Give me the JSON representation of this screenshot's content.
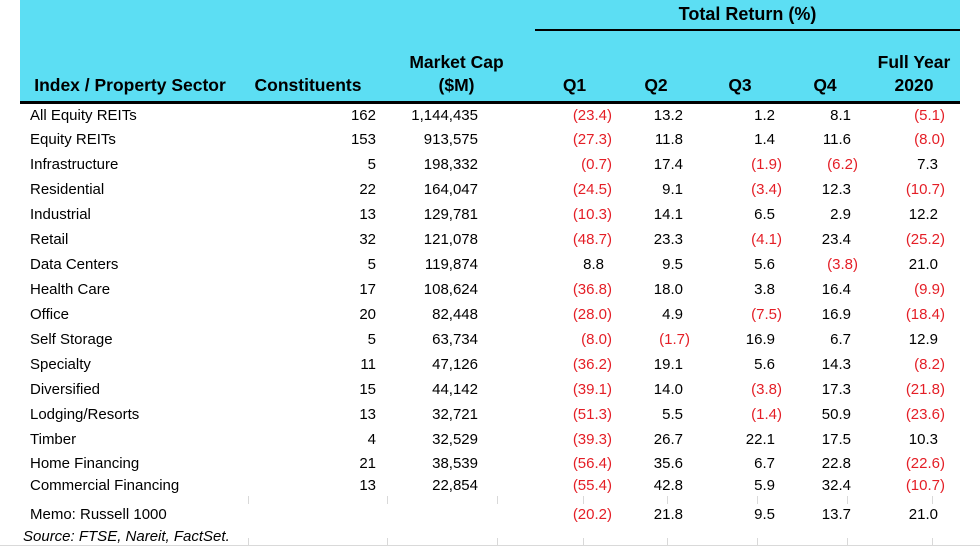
{
  "title": {
    "total_return": "Total Return (%)"
  },
  "columns": {
    "sector": "Index / Property Sector",
    "constituents": "Constituents",
    "market_cap": {
      "line1": "Market Cap",
      "line2": "($M)"
    },
    "q1": "Q1",
    "q2": "Q2",
    "q3": "Q3",
    "q4": "Q4",
    "full_year": {
      "line1": "Full Year",
      "line2": "2020"
    }
  },
  "rows": [
    {
      "sector": "All Equity REITs",
      "constituents": "162",
      "market_cap": "1,144,435",
      "q1": "(23.4)",
      "q2": "13.2",
      "q3": "1.2",
      "q4": "8.1",
      "full_year": "(5.1)"
    },
    {
      "sector": "Equity REITs",
      "constituents": "153",
      "market_cap": "913,575",
      "q1": "(27.3)",
      "q2": "11.8",
      "q3": "1.4",
      "q4": "11.6",
      "full_year": "(8.0)"
    },
    {
      "sector": "Infrastructure",
      "constituents": "5",
      "market_cap": "198,332",
      "q1": "(0.7)",
      "q2": "17.4",
      "q3": "(1.9)",
      "q4": "(6.2)",
      "full_year": "7.3"
    },
    {
      "sector": "Residential",
      "constituents": "22",
      "market_cap": "164,047",
      "q1": "(24.5)",
      "q2": "9.1",
      "q3": "(3.4)",
      "q4": "12.3",
      "full_year": "(10.7)"
    },
    {
      "sector": "Industrial",
      "constituents": "13",
      "market_cap": "129,781",
      "q1": "(10.3)",
      "q2": "14.1",
      "q3": "6.5",
      "q4": "2.9",
      "full_year": "12.2"
    },
    {
      "sector": "Retail",
      "constituents": "32",
      "market_cap": "121,078",
      "q1": "(48.7)",
      "q2": "23.3",
      "q3": "(4.1)",
      "q4": "23.4",
      "full_year": "(25.2)"
    },
    {
      "sector": "Data Centers",
      "constituents": "5",
      "market_cap": "119,874",
      "q1": "8.8",
      "q2": "9.5",
      "q3": "5.6",
      "q4": "(3.8)",
      "full_year": "21.0"
    },
    {
      "sector": "Health Care",
      "constituents": "17",
      "market_cap": "108,624",
      "q1": "(36.8)",
      "q2": "18.0",
      "q3": "3.8",
      "q4": "16.4",
      "full_year": "(9.9)"
    },
    {
      "sector": "Office",
      "constituents": "20",
      "market_cap": "82,448",
      "q1": "(28.0)",
      "q2": "4.9",
      "q3": "(7.5)",
      "q4": "16.9",
      "full_year": "(18.4)"
    },
    {
      "sector": "Self Storage",
      "constituents": "5",
      "market_cap": "63,734",
      "q1": "(8.0)",
      "q2": "(1.7)",
      "q3": "16.9",
      "q4": "6.7",
      "full_year": "12.9"
    },
    {
      "sector": "Specialty",
      "constituents": "11",
      "market_cap": "47,126",
      "q1": "(36.2)",
      "q2": "19.1",
      "q3": "5.6",
      "q4": "14.3",
      "full_year": "(8.2)"
    },
    {
      "sector": "Diversified",
      "constituents": "15",
      "market_cap": "44,142",
      "q1": "(39.1)",
      "q2": "14.0",
      "q3": "(3.8)",
      "q4": "17.3",
      "full_year": "(21.8)"
    },
    {
      "sector": "Lodging/Resorts",
      "constituents": "13",
      "market_cap": "32,721",
      "q1": "(51.3)",
      "q2": "5.5",
      "q3": "(1.4)",
      "q4": "50.9",
      "full_year": "(23.6)"
    },
    {
      "sector": "Timber",
      "constituents": "4",
      "market_cap": "32,529",
      "q1": "(39.3)",
      "q2": "26.7",
      "q3": "22.1",
      "q4": "17.5",
      "full_year": "10.3"
    },
    {
      "sector": "Home Financing",
      "constituents": "21",
      "market_cap": "38,539",
      "q1": "(56.4)",
      "q2": "35.6",
      "q3": "6.7",
      "q4": "22.8",
      "full_year": "(22.6)"
    },
    {
      "sector": "Commercial Financing",
      "constituents": "13",
      "market_cap": "22,854",
      "q1": "(55.4)",
      "q2": "42.8",
      "q3": "5.9",
      "q4": "32.4",
      "full_year": "(10.7)"
    }
  ],
  "memo_row": {
    "sector": "Memo: Russell 1000",
    "constituents": "",
    "market_cap": "",
    "q1": "(20.2)",
    "q2": "21.8",
    "q3": "9.5",
    "q4": "13.7",
    "full_year": "21.0"
  },
  "source_note": "Source: FTSE, Nareit, FactSet.",
  "colors": {
    "header_bg": "#5cdef3",
    "negative": "#e41e26",
    "text": "#000000"
  }
}
